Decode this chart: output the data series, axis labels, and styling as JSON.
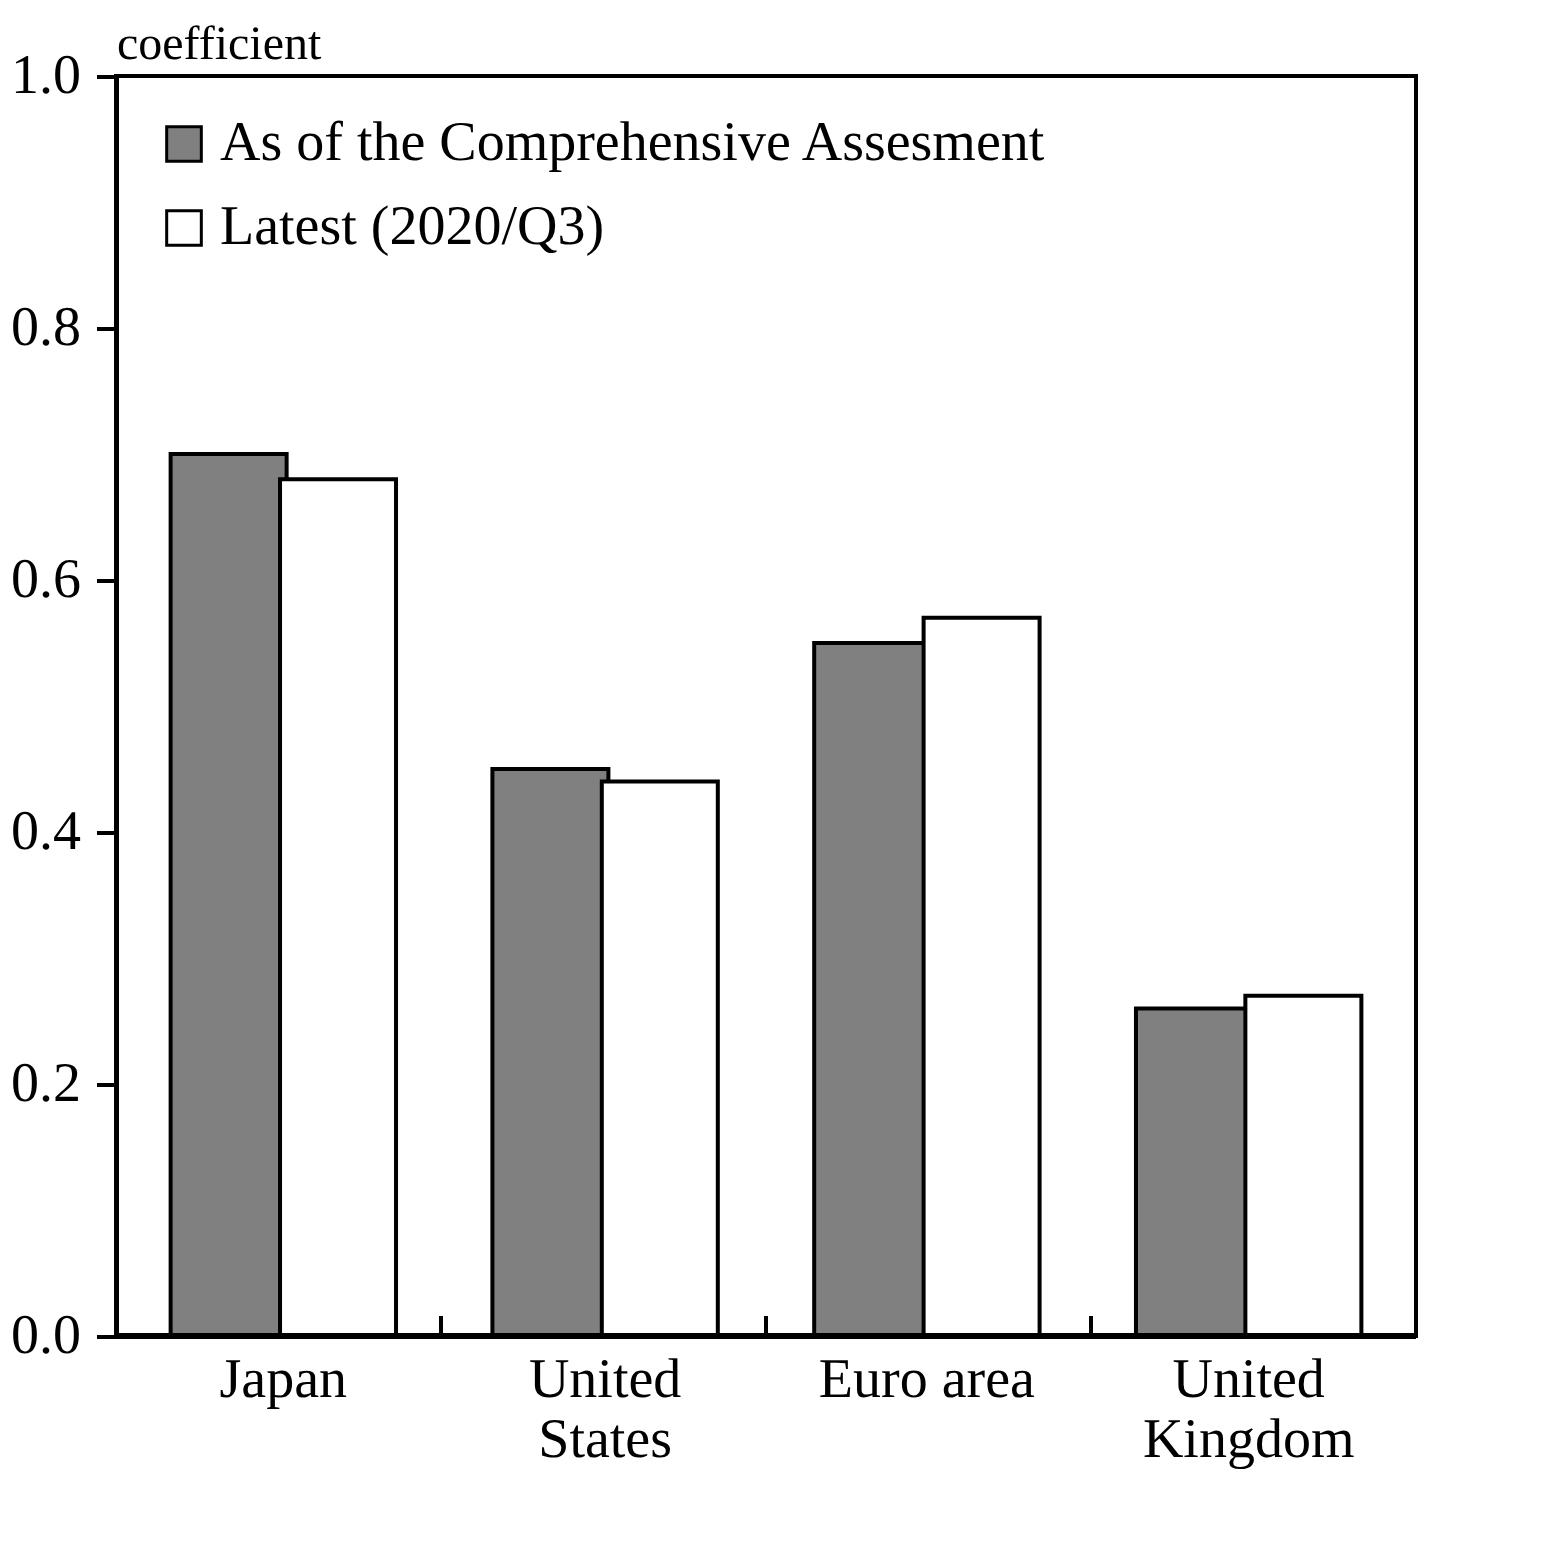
{
  "chart_data": {
    "type": "bar",
    "ylabel": "coefficient",
    "categories": [
      "Japan",
      "United\nStates",
      "Euro area",
      "United\nKingdom"
    ],
    "series": [
      {
        "name": "As of the Comprehensive Assesment",
        "color": "#808080",
        "values": [
          0.7,
          0.45,
          0.55,
          0.26
        ]
      },
      {
        "name": "Latest (2020/Q3)",
        "color": "#ffffff",
        "values": [
          0.68,
          0.44,
          0.57,
          0.27
        ]
      }
    ],
    "ylim": [
      0,
      1.0
    ],
    "yticks": [
      {
        "value": 0,
        "label": "0.0"
      },
      {
        "value": 0.2,
        "label": "0.2"
      },
      {
        "value": 0.4,
        "label": "0.4"
      },
      {
        "value": 0.6,
        "label": "0.6"
      },
      {
        "value": 0.8,
        "label": "0.8"
      },
      {
        "value": 1.0,
        "label": "1.0"
      }
    ],
    "grid": false,
    "legend": "top left"
  }
}
